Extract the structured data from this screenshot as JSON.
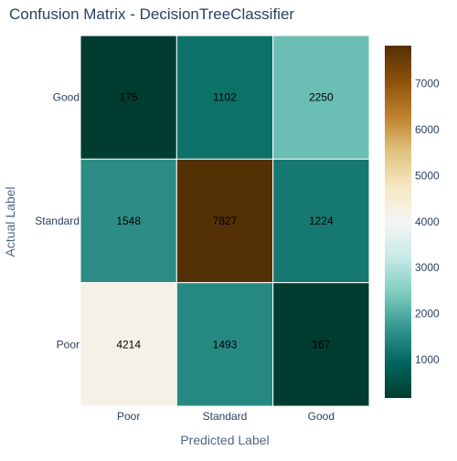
{
  "chart_data": {
    "type": "heatmap",
    "title": "Confusion Matrix - DecisionTreeClassifier",
    "xlabel": "Predicted Label",
    "ylabel": "Actual Label",
    "x_categories": [
      "Poor",
      "Standard",
      "Good"
    ],
    "y_categories": [
      "Good",
      "Standard",
      "Poor"
    ],
    "z": [
      [
        175,
        1102,
        2250
      ],
      [
        1548,
        7827,
        1224
      ],
      [
        4214,
        1493,
        167
      ]
    ],
    "colorscale": "BrBG",
    "colorbar": {
      "range": [
        167,
        7827
      ],
      "ticks": [
        1000,
        2000,
        3000,
        4000,
        5000,
        6000,
        7000
      ]
    },
    "colorscale_stops": [
      [
        0.0,
        "#003c30"
      ],
      [
        0.1,
        "#01665e"
      ],
      [
        0.2,
        "#35978f"
      ],
      [
        0.3,
        "#80cdc1"
      ],
      [
        0.4,
        "#c7eae5"
      ],
      [
        0.5,
        "#f5f5f5"
      ],
      [
        0.6,
        "#f6e8c3"
      ],
      [
        0.7,
        "#dfc27d"
      ],
      [
        0.8,
        "#bf812d"
      ],
      [
        0.9,
        "#8c510a"
      ],
      [
        1.0,
        "#543005"
      ]
    ]
  }
}
